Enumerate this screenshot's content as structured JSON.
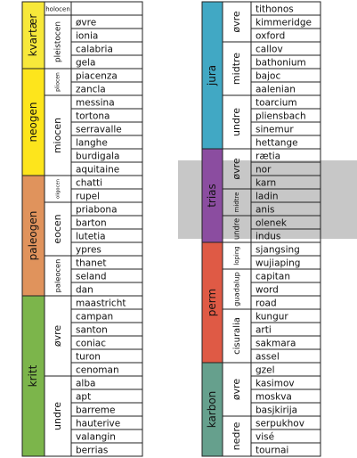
{
  "left": {
    "periods": [
      {
        "name": "kvartær",
        "color": "#f7e83a",
        "epochs": [
          {
            "name": "holocen",
            "stages": []
          },
          {
            "name": "pleistocen",
            "stages": [
              "øvre",
              "ionia",
              "calabria",
              "gela"
            ]
          }
        ]
      },
      {
        "name": "neogen",
        "color": "#fde51c",
        "epochs": [
          {
            "name": "pliocen",
            "stages": [
              "piacenza",
              "zancla"
            ]
          },
          {
            "name": "miocen",
            "stages": [
              "messina",
              "tortona",
              "serravalle",
              "langhe",
              "burdigala",
              "aquitaine"
            ]
          }
        ]
      },
      {
        "name": "paleogen",
        "color": "#e0935c",
        "epochs": [
          {
            "name": "oligocen",
            "stages": [
              "chatti",
              "rupel"
            ]
          },
          {
            "name": "eocen",
            "stages": [
              "priabona",
              "barton",
              "lutetia",
              "ypres"
            ]
          },
          {
            "name": "paleocen",
            "stages": [
              "thanet",
              "seland",
              "dan"
            ]
          }
        ]
      },
      {
        "name": "kritt",
        "color": "#7cb54b",
        "epochs": [
          {
            "name": "øvre",
            "stages": [
              "maastricht",
              "campan",
              "santon",
              "coniac",
              "turon",
              "cenoman"
            ]
          },
          {
            "name": "undre",
            "stages": [
              "alba",
              "apt",
              "barreme",
              "hauterive",
              "valangin",
              "berrias"
            ]
          }
        ]
      }
    ]
  },
  "right": {
    "periods": [
      {
        "name": "jura",
        "color": "#41a8c4",
        "epochs": [
          {
            "name": "øvre",
            "stages": [
              "tithonos",
              "kimmeridge",
              "oxford"
            ]
          },
          {
            "name": "midtre",
            "stages": [
              "callov",
              "bathonium",
              "bajoc",
              "aalenian"
            ]
          },
          {
            "name": "undre",
            "stages": [
              "toarcium",
              "pliensbach",
              "sinemur",
              "hettange"
            ]
          }
        ]
      },
      {
        "name": "trias",
        "color": "#8b4da0",
        "epochs": [
          {
            "name": "øvre",
            "stages": [
              "rætia",
              "nor",
              "karn"
            ]
          },
          {
            "name": "midtre",
            "stages": [
              "ladin",
              "anis"
            ]
          },
          {
            "name": "undre",
            "stages": [
              "olenek",
              "indus"
            ]
          }
        ]
      },
      {
        "name": "perm",
        "color": "#df5a45",
        "epochs": [
          {
            "name": "loping",
            "stages": [
              "sjangsing",
              "wujiaping"
            ]
          },
          {
            "name": "guadalup",
            "stages": [
              "capitan",
              "word",
              "road"
            ]
          },
          {
            "name": "cisuralia",
            "stages": [
              "kungur",
              "arti",
              "sakmara",
              "assel"
            ]
          }
        ]
      },
      {
        "name": "karbon",
        "color": "#66a08d",
        "epochs": [
          {
            "name": "øvre",
            "stages": [
              "gzel",
              "kasimov",
              "moskva",
              "basjkirija"
            ]
          },
          {
            "name": "nedre",
            "stages": [
              "serpukhov",
              "visé",
              "tournai"
            ]
          }
        ]
      }
    ]
  }
}
